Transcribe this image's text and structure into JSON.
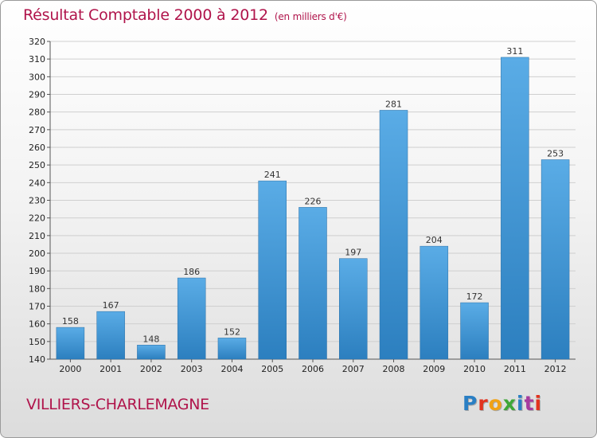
{
  "title": "Résultat Comptable 2000 à 2012",
  "subtitle": "(en milliers d'€)",
  "town": "VILLIERS-CHARLEMAGNE",
  "logo": {
    "letters": [
      "P",
      "r",
      "o",
      "x",
      "i",
      "t",
      "i"
    ],
    "colors": [
      "#2a7fc4",
      "#e2321e",
      "#f1a214",
      "#3da737",
      "#2a7fc4",
      "#a63b9f",
      "#e2321e"
    ]
  },
  "colors": {
    "title": "#b0144b",
    "bar_top": "#5aace6",
    "bar_bottom": "#2c7fbf"
  },
  "chart_data": {
    "type": "bar",
    "categories": [
      "2000",
      "2001",
      "2002",
      "2003",
      "2004",
      "2005",
      "2006",
      "2007",
      "2008",
      "2009",
      "2010",
      "2011",
      "2012"
    ],
    "values": [
      158,
      167,
      148,
      186,
      152,
      241,
      226,
      197,
      281,
      204,
      172,
      311,
      253
    ],
    "title": "Résultat Comptable 2000 à 2012",
    "subtitle": "(en milliers d'€)",
    "xlabel": "",
    "ylabel": "",
    "ylim": [
      140,
      320
    ],
    "yticks": [
      140,
      150,
      160,
      170,
      180,
      190,
      200,
      210,
      220,
      230,
      240,
      250,
      260,
      270,
      280,
      290,
      300,
      310,
      320
    ],
    "grid": true,
    "legend": "none"
  }
}
